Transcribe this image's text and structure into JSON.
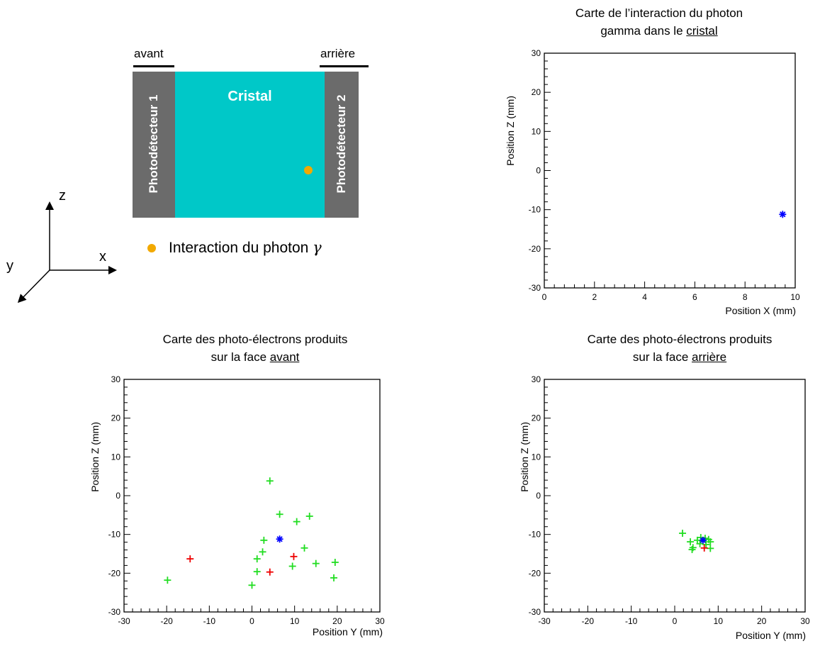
{
  "schematic": {
    "front_label": "avant",
    "back_label": "arrière",
    "crystal_label": "Cristal",
    "detector1_label": "Photodétecteur 1",
    "detector2_label": "Photodétecteur 2",
    "legend_label": "Interaction du photon",
    "legend_symbol": "γ",
    "axes": {
      "x": "x",
      "y": "y",
      "z": "z"
    },
    "colors": {
      "detector": "#6b6b6b",
      "crystal": "#00c8c8",
      "interaction": "#f2a900"
    }
  },
  "chart_data": [
    {
      "id": "crystal",
      "type": "scatter",
      "title": [
        "Carte de l’interaction du photon",
        "gamma dans le "
      ],
      "title_underlined": "cristal",
      "xlabel": "Position X (mm)",
      "ylabel": "Position Z (mm)",
      "xlim": [
        0,
        10
      ],
      "ylim": [
        -30,
        30
      ],
      "xticks": [
        0,
        2,
        4,
        6,
        8,
        10
      ],
      "yticks": [
        -30,
        -20,
        -10,
        0,
        10,
        20,
        30
      ],
      "series": [
        {
          "color": "#0000ff",
          "marker": "star",
          "points": [
            [
              9.5,
              -11.2
            ]
          ]
        }
      ]
    },
    {
      "id": "front",
      "type": "scatter",
      "title": [
        "Carte des photo-électrons produits",
        "sur la face "
      ],
      "title_underlined": "avant",
      "xlabel": "Position Y (mm)",
      "ylabel": "Position Z (mm)",
      "xlim": [
        -30,
        30
      ],
      "ylim": [
        -30,
        30
      ],
      "xticks": [
        -30,
        -20,
        -10,
        0,
        10,
        20,
        30
      ],
      "yticks": [
        -30,
        -20,
        -10,
        0,
        10,
        20,
        30
      ],
      "series": [
        {
          "color": "#22dd22",
          "marker": "plus",
          "points": [
            [
              4.2,
              3.8
            ],
            [
              6.5,
              -4.8
            ],
            [
              13.5,
              -5.3
            ],
            [
              10.5,
              -6.7
            ],
            [
              2.8,
              -11.5
            ],
            [
              12.3,
              -13.5
            ],
            [
              2.5,
              -14.5
            ],
            [
              1.2,
              -16.3
            ],
            [
              15.0,
              -17.5
            ],
            [
              19.5,
              -17.2
            ],
            [
              9.5,
              -18.2
            ],
            [
              1.2,
              -19.6
            ],
            [
              19.2,
              -21.2
            ],
            [
              -19.8,
              -21.8
            ],
            [
              0.0,
              -23.1
            ]
          ]
        },
        {
          "color": "#ee0000",
          "marker": "plus",
          "points": [
            [
              -14.5,
              -16.3
            ],
            [
              9.8,
              -15.7
            ],
            [
              4.2,
              -19.7
            ]
          ]
        },
        {
          "color": "#0000ff",
          "marker": "star",
          "points": [
            [
              6.5,
              -11.2
            ]
          ]
        }
      ]
    },
    {
      "id": "back",
      "type": "scatter",
      "title": [
        "Carte des photo-électrons produits",
        "sur la face "
      ],
      "title_underlined": "arrière",
      "xlabel": "Position Y (mm)",
      "ylabel": "Position Z (mm)",
      "xlim": [
        -30,
        30
      ],
      "ylim": [
        -30,
        30
      ],
      "xticks": [
        -30,
        -20,
        -10,
        0,
        10,
        20,
        30
      ],
      "yticks": [
        -30,
        -20,
        -10,
        0,
        10,
        20,
        30
      ],
      "series": [
        {
          "color": "#22dd22",
          "marker": "plus",
          "points": [
            [
              1.8,
              -9.7
            ],
            [
              6.0,
              -10.8
            ],
            [
              7.0,
              -11.0
            ],
            [
              7.8,
              -11.3
            ],
            [
              5.2,
              -11.5
            ],
            [
              6.5,
              -11.8
            ],
            [
              3.6,
              -11.9
            ],
            [
              8.2,
              -11.9
            ],
            [
              5.8,
              -12.4
            ],
            [
              7.2,
              -12.6
            ],
            [
              4.2,
              -13.4
            ],
            [
              8.2,
              -13.6
            ],
            [
              4.0,
              -13.9
            ]
          ]
        },
        {
          "color": "#ee0000",
          "marker": "plus",
          "points": [
            [
              6.8,
              -13.5
            ]
          ]
        },
        {
          "color": "#0000ff",
          "marker": "star",
          "points": [
            [
              6.5,
              -11.5
            ]
          ]
        }
      ]
    }
  ]
}
